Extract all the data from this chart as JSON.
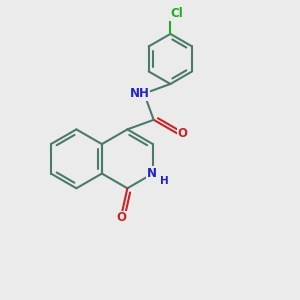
{
  "background_color": "#ebebeb",
  "bond_color": "#4a7a6a",
  "bond_width": 1.5,
  "atom_colors": {
    "N": "#2222cc",
    "O": "#cc2222",
    "Cl": "#22aa22",
    "C": "#4a7a6a"
  },
  "font_size_atoms": 8.5,
  "font_size_h": 7.5,
  "xlim": [
    0,
    10
  ],
  "ylim": [
    0,
    10
  ]
}
